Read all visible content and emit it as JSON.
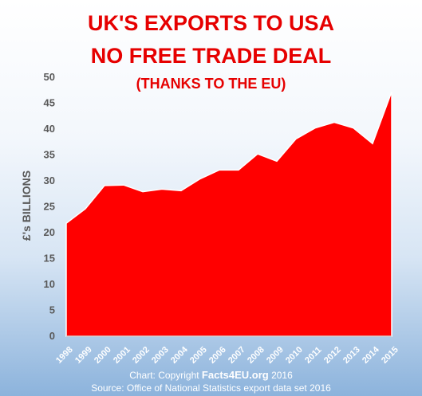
{
  "header": {
    "title_line1": "UK'S EXPORTS TO USA",
    "title_line2": "NO FREE TRADE DEAL",
    "subtitle": "(THANKS TO THE EU)"
  },
  "footer": {
    "credit_prefix": "Chart: Copyright",
    "credit_site": "Facts4EU.org",
    "credit_year": "2016",
    "source": "Source: Office of National Statistics export data set 2016"
  },
  "colors": {
    "area_fill": "#ff0000",
    "title": "#e60000",
    "axis_text": "#595959"
  },
  "chart_data": {
    "type": "area",
    "title": "UK'S EXPORTS TO USA",
    "ylabel": "£'s BILLIONS",
    "xlabel": "",
    "ylim": [
      0,
      50
    ],
    "yticks": [
      0,
      5,
      10,
      15,
      20,
      25,
      30,
      35,
      40,
      45,
      50
    ],
    "grid": false,
    "categories": [
      "1998",
      "1999",
      "2000",
      "2001",
      "2002",
      "2003",
      "2004",
      "2005",
      "2006",
      "2007",
      "2008",
      "2009",
      "2010",
      "2011",
      "2012",
      "2013",
      "2014",
      "2015"
    ],
    "series": [
      {
        "values": [
          21.8,
          24.6,
          29.1,
          29.2,
          27.9,
          28.4,
          28.1,
          30.4,
          32.1,
          32.1,
          35.2,
          33.8,
          38.1,
          40.2,
          41.3,
          40.2,
          37.2,
          47.2
        ]
      }
    ]
  }
}
